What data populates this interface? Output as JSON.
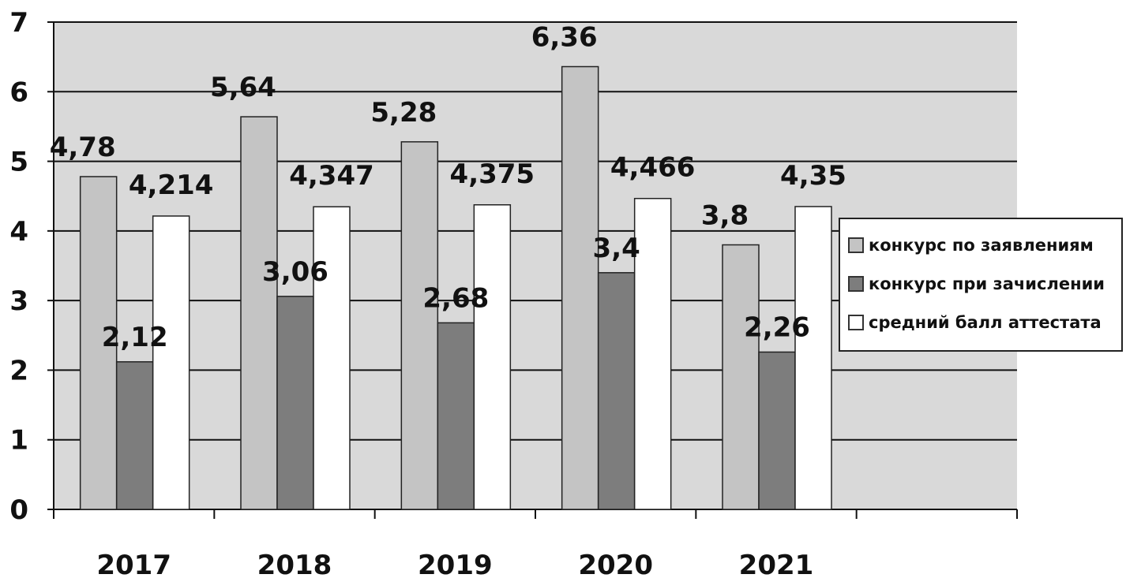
{
  "chart_data": {
    "type": "bar",
    "categories": [
      "2017",
      "2018",
      "2019",
      "2020",
      "2021"
    ],
    "series": [
      {
        "name": "конкурс по заявлениям",
        "values": [
          4.78,
          5.64,
          5.28,
          6.36,
          3.8
        ],
        "labels": [
          "4,78",
          "5,64",
          "5,28",
          "6,36",
          "3,8"
        ],
        "color": "#c4c4c4"
      },
      {
        "name": "конкурс при зачислении",
        "values": [
          2.12,
          3.06,
          2.68,
          3.4,
          2.26
        ],
        "labels": [
          "2,12",
          "3,06",
          "2,68",
          "3,4",
          "2,26"
        ],
        "color": "#7d7d7d"
      },
      {
        "name": "средний балл аттестата",
        "values": [
          4.214,
          4.347,
          4.375,
          4.466,
          4.35
        ],
        "labels": [
          "4,214",
          "4,347",
          "4,375",
          "4,466",
          "4,35"
        ],
        "color": "#ffffff"
      }
    ],
    "ylim": [
      0,
      7
    ],
    "yticks": [
      "0",
      "1",
      "2",
      "3",
      "4",
      "5",
      "6",
      "7"
    ],
    "grid": true,
    "legend": "right",
    "plot_background": "#d9d9d9",
    "title": "",
    "xlabel": "",
    "ylabel": ""
  }
}
